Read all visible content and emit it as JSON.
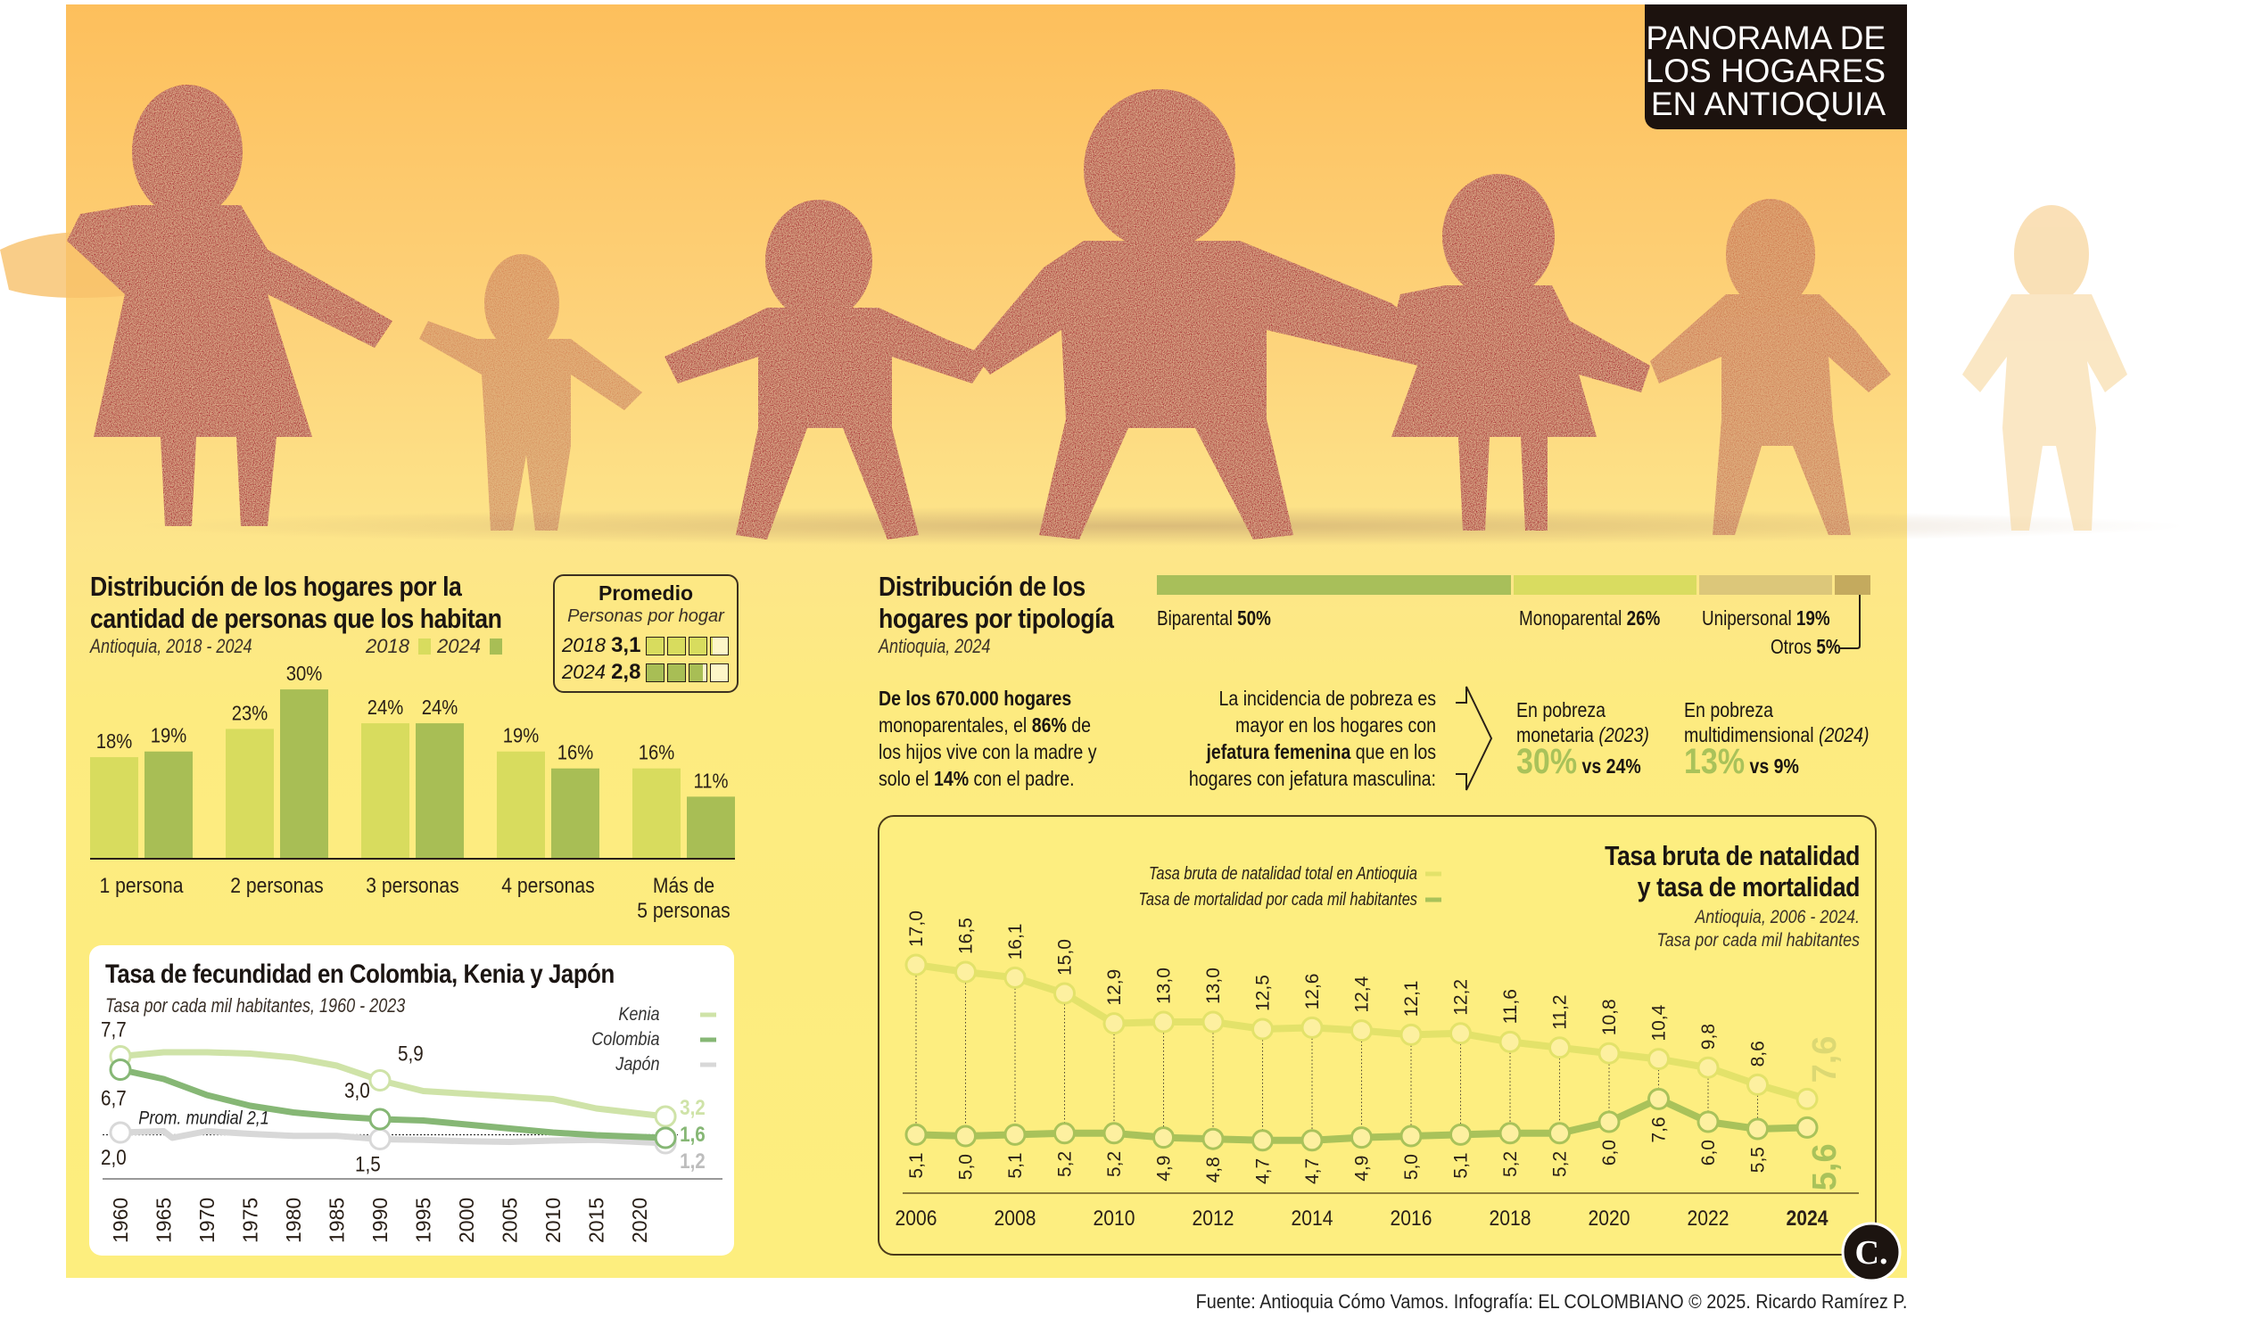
{
  "header": {
    "title_lines": [
      "PANORAMA DE",
      "LOS HOGARES",
      "EN ANTIOQUIA"
    ]
  },
  "colors": {
    "y2018": "#d8dc5e",
    "y2024": "#a8be55",
    "figure_red": "#a91f2d",
    "kenia": "#cfe3a8",
    "colombia": "#86b775",
    "japon": "#d8d8d8",
    "natalidad": "#e3e26a",
    "mortalidad": "#a9c25a"
  },
  "household_size": {
    "title_line1": "Distribución de los hogares por la",
    "title_line2": "cantidad de personas que los habitan",
    "subtitle": "Antioquia, 2018 - 2024",
    "legend_2018": "2018",
    "legend_2024": "2024",
    "promedio": {
      "title": "Promedio",
      "subtitle": "Personas por hogar",
      "rows": [
        {
          "year": "2018",
          "value": "3,1",
          "fill": 3.1
        },
        {
          "year": "2024",
          "value": "2,8",
          "fill": 2.8
        }
      ]
    }
  },
  "typology": {
    "title_line1": "Distribución de los",
    "title_line2": "hogares por tipología",
    "subtitle": "Antioquia, 2024",
    "segments": [
      {
        "label": "Biparental",
        "value": "50%",
        "pct": 50,
        "color": "#a8bf5a"
      },
      {
        "label": "Monoparental",
        "value": "26%",
        "pct": 26,
        "color": "#d9dc60"
      },
      {
        "label": "Unipersonal",
        "value": "19%",
        "pct": 19,
        "color": "#dcc77a"
      },
      {
        "label": "Otros",
        "value": "5%",
        "pct": 5,
        "color": "#c4aa5e"
      }
    ],
    "note1": {
      "l1": "De los 670.000 hogares",
      "l2a": "monoparentales, el ",
      "l2b": "86%",
      "l2c": " de",
      "l3": "los hijos vive con la madre y",
      "l4a": "solo el ",
      "l4b": "14%",
      "l4c": " con el padre."
    },
    "note2": {
      "l1": "La incidencia de pobreza es",
      "l2": "mayor en los hogares con",
      "l3a": "jefatura femenina",
      "l3b": " que en los",
      "l4": "hogares con jefatura masculina:"
    },
    "poverty": [
      {
        "l1": "En pobreza",
        "l2": "monetaria ",
        "year": "(2023)",
        "big": "30%",
        "vs": "vs 24%"
      },
      {
        "l1": "En pobreza",
        "l2": "multidimensional ",
        "year": "(2024)",
        "big": "13%",
        "vs": "vs 9%"
      }
    ]
  },
  "chart_data": [
    {
      "type": "bar",
      "title": "Distribución de los hogares por la cantidad de personas que los habitan",
      "subtitle": "Antioquia, 2018 - 2024",
      "categories": [
        "1 persona",
        "2 personas",
        "3 personas",
        "4 personas",
        "Más de 5 personas"
      ],
      "category_lines": [
        [
          "1 persona"
        ],
        [
          "2 personas"
        ],
        [
          "3 personas"
        ],
        [
          "4 personas"
        ],
        [
          "Más de",
          "5 personas"
        ]
      ],
      "series": [
        {
          "name": "2018",
          "values": [
            18,
            23,
            24,
            19,
            16
          ],
          "labels": [
            "18%",
            "23%",
            "24%",
            "19%",
            "16%"
          ]
        },
        {
          "name": "2024",
          "values": [
            19,
            30,
            24,
            16,
            11
          ],
          "labels": [
            "19%",
            "30%",
            "24%",
            "16%",
            "11%"
          ]
        }
      ],
      "ylim": [
        0,
        30
      ],
      "legend": "top-right"
    },
    {
      "type": "line",
      "title": "Tasa de fecundidad en Colombia, Kenia y Japón",
      "subtitle": "Tasa por cada mil habitantes, 1960 - 2023",
      "x_ticks": [
        "1960",
        "1965",
        "1970",
        "1975",
        "1980",
        "1985",
        "1990",
        "1995",
        "2000",
        "2005",
        "2010",
        "2015",
        "2020"
      ],
      "reference": {
        "label": "Prom. mundial 2,1",
        "value": 2.1
      },
      "series": [
        {
          "name": "Kenia",
          "x": [
            1960,
            1965,
            1970,
            1975,
            1980,
            1985,
            1990,
            1995,
            2000,
            2005,
            2010,
            2015,
            2023
          ],
          "values": [
            7.7,
            8.0,
            8.0,
            7.9,
            7.6,
            7.0,
            5.9,
            5.1,
            4.9,
            4.7,
            4.5,
            3.8,
            3.2
          ],
          "point_labels": [
            {
              "x": 1960,
              "text": "7,7"
            },
            {
              "x": 1990,
              "text": "5,9"
            }
          ],
          "end_label": "3,2"
        },
        {
          "name": "Colombia",
          "x": [
            1960,
            1965,
            1970,
            1975,
            1980,
            1985,
            1990,
            1995,
            2000,
            2005,
            2010,
            2015,
            2023
          ],
          "values": [
            6.7,
            6.0,
            4.8,
            4.0,
            3.5,
            3.2,
            3.0,
            2.9,
            2.6,
            2.3,
            2.0,
            1.8,
            1.6
          ],
          "point_labels": [
            {
              "x": 1960,
              "text": "6,7"
            },
            {
              "x": 1990,
              "text": "3,0"
            }
          ],
          "end_label": "1,6"
        },
        {
          "name": "Japón",
          "x": [
            1960,
            1965,
            1966,
            1970,
            1975,
            1980,
            1985,
            1990,
            1995,
            2000,
            2005,
            2010,
            2015,
            2023
          ],
          "values": [
            2.0,
            2.1,
            1.6,
            2.1,
            1.9,
            1.75,
            1.75,
            1.5,
            1.45,
            1.35,
            1.3,
            1.4,
            1.45,
            1.2
          ],
          "point_labels": [
            {
              "x": 1960,
              "text": "2,0"
            },
            {
              "x": 1990,
              "text": "1,5"
            }
          ],
          "end_label": "1,2"
        }
      ],
      "legend": "top-right"
    },
    {
      "type": "line",
      "title_line1": "Tasa bruta de natalidad",
      "title_line2": "y tasa de mortalidad",
      "subtitle_line1": "Antioquia, 2006 - 2024.",
      "subtitle_line2": "Tasa por cada mil habitantes",
      "x": [
        2006,
        2007,
        2008,
        2009,
        2010,
        2011,
        2012,
        2013,
        2014,
        2015,
        2016,
        2017,
        2018,
        2019,
        2020,
        2021,
        2022,
        2023,
        2024
      ],
      "x_ticks": [
        "2006",
        "2008",
        "2010",
        "2012",
        "2014",
        "2016",
        "2018",
        "2020",
        "2022",
        "2024"
      ],
      "series": [
        {
          "name": "Tasa bruta de natalidad total en Antioquia",
          "values": [
            17.0,
            16.5,
            16.1,
            15.0,
            12.9,
            13.0,
            13.0,
            12.5,
            12.6,
            12.4,
            12.1,
            12.2,
            11.6,
            11.2,
            10.8,
            10.4,
            9.8,
            8.6,
            7.6
          ],
          "labels": [
            "17,0",
            "16,5",
            "16,1",
            "15,0",
            "12,9",
            "13,0",
            "13,0",
            "12,5",
            "12,6",
            "12,4",
            "12,1",
            "12,2",
            "11,6",
            "11,2",
            "10,8",
            "10,4",
            "9,8",
            "8,6",
            "7,6"
          ]
        },
        {
          "name": "Tasa de mortalidad por cada mil habitantes",
          "values": [
            5.1,
            5.0,
            5.1,
            5.2,
            5.2,
            4.9,
            4.8,
            4.7,
            4.7,
            4.9,
            5.0,
            5.1,
            5.2,
            5.2,
            6.0,
            7.6,
            6.0,
            5.5,
            5.6
          ],
          "labels": [
            "5,1",
            "5,0",
            "5,1",
            "5,2",
            "5,2",
            "4,9",
            "4,8",
            "4,7",
            "4,7",
            "4,9",
            "5,0",
            "5,1",
            "5,2",
            "5,2",
            "6,0",
            "7,6",
            "6,0",
            "5,5",
            "5,6"
          ]
        }
      ],
      "legend": "top-left"
    }
  ],
  "logo": {
    "text": "C."
  },
  "footer": "Fuente: Antioquia Cómo Vamos. Infografía: EL COLOMBIANO © 2025. Ricardo Ramírez P."
}
